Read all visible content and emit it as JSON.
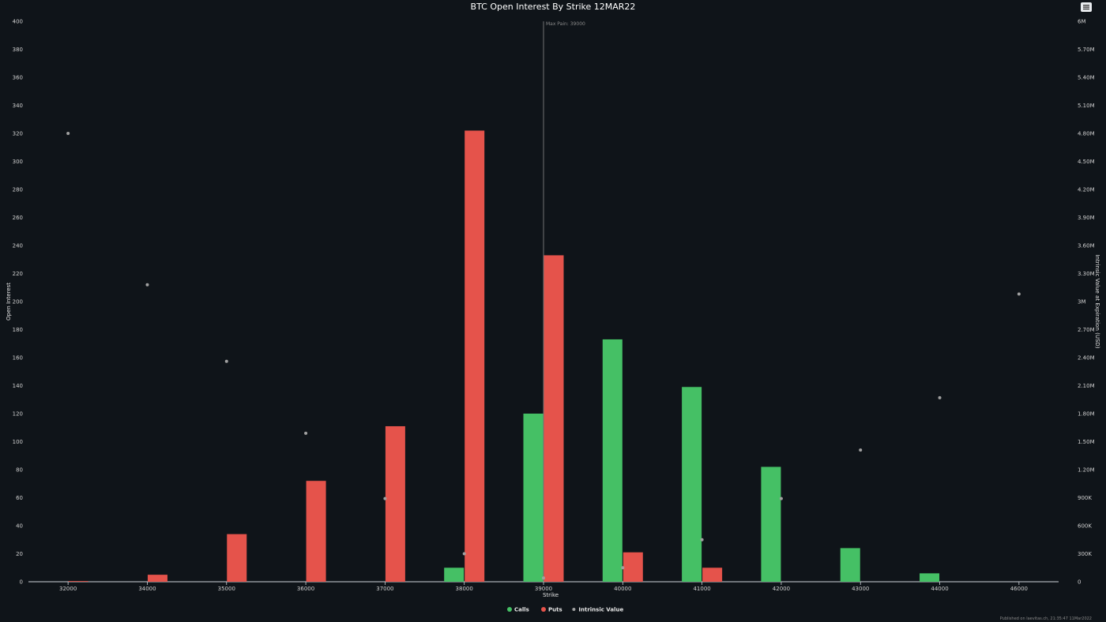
{
  "chart_data": {
    "type": "bar",
    "title": "BTC Open Interest By Strike 12MAR22",
    "xlabel": "Strike",
    "ylabel": "Open Interest",
    "y2label": "Intrinsic Value at Expiration (USD)",
    "categories": [
      "32000",
      "34000",
      "35000",
      "36000",
      "37000",
      "38000",
      "39000",
      "40000",
      "41000",
      "42000",
      "43000",
      "44000",
      "46000"
    ],
    "ylim": [
      0,
      400
    ],
    "y_ticks": [
      "0",
      "20",
      "40",
      "60",
      "80",
      "100",
      "120",
      "140",
      "160",
      "180",
      "200",
      "220",
      "240",
      "260",
      "280",
      "300",
      "320",
      "340",
      "360",
      "380",
      "400"
    ],
    "y2lim": [
      0,
      6000000
    ],
    "y2_ticks": [
      "0",
      "300K",
      "600K",
      "900K",
      "1.20M",
      "1.50M",
      "1.80M",
      "2.10M",
      "2.40M",
      "2.70M",
      "3M",
      "3.30M",
      "3.60M",
      "3.90M",
      "4.20M",
      "4.50M",
      "4.80M",
      "5.10M",
      "5.40M",
      "5.70M",
      "6M"
    ],
    "series": [
      {
        "name": "Calls",
        "color": "#45c065",
        "axis": "left",
        "values": [
          0,
          0,
          0,
          0,
          0,
          10,
          120,
          173,
          139,
          82,
          24,
          6,
          0
        ]
      },
      {
        "name": "Puts",
        "color": "#e5534b",
        "axis": "left",
        "values": [
          0.5,
          5,
          34,
          72,
          111,
          322,
          233,
          21,
          10,
          0,
          0,
          0,
          0
        ]
      },
      {
        "name": "Intrinsic Value",
        "color": "#a0a0a0",
        "axis": "right",
        "kind": "scatter",
        "values": [
          4800000,
          3180000,
          2360000,
          1590000,
          890000,
          300000,
          40000,
          150000,
          450000,
          890000,
          1410000,
          1970000,
          3080000
        ]
      }
    ],
    "max_pain": {
      "label": "Max Pain: 39000",
      "category": "39000"
    },
    "grid": false,
    "legend_placement": "bottom-center"
  },
  "footer": {
    "credit": "Published on laevitas.ch, 21:35:47 11Mar2022"
  },
  "menu": {
    "icon": "hamburger-menu-icon"
  }
}
